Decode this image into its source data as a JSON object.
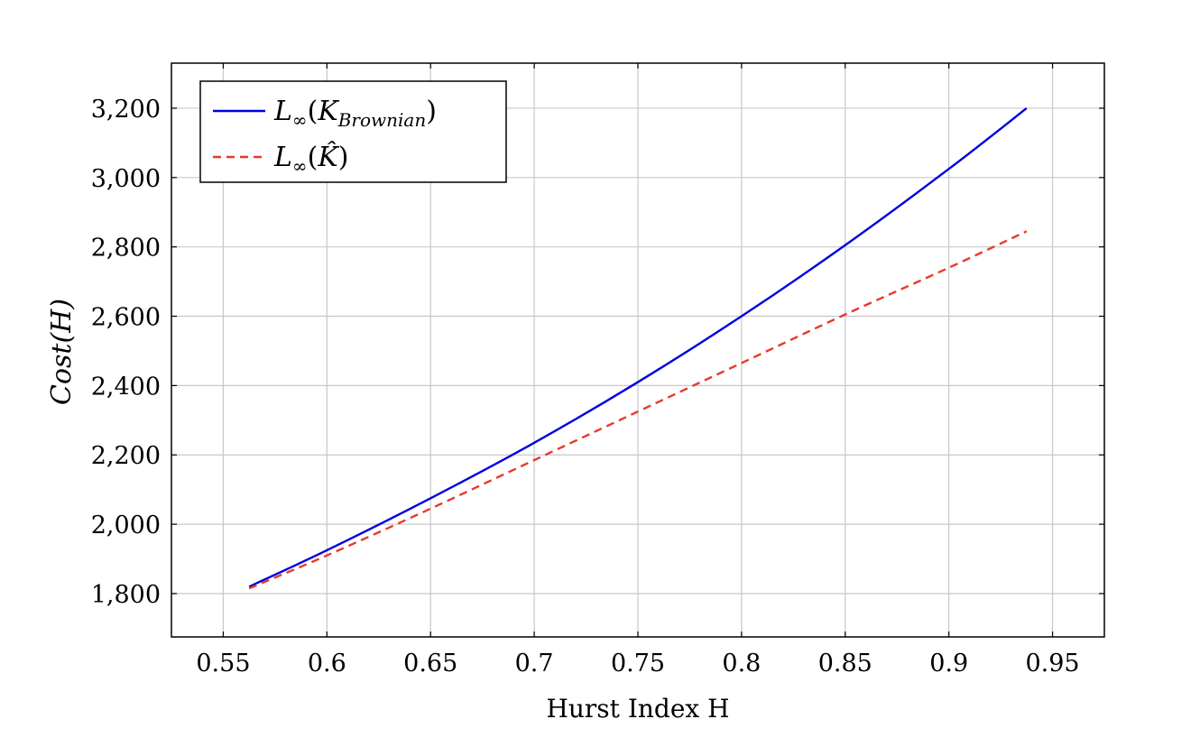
{
  "chart_data": {
    "type": "line",
    "title": "",
    "xlabel": "Hurst Index H",
    "ylabel": "Cost(H)",
    "xlim": [
      0.525,
      0.975
    ],
    "ylim": [
      1675,
      3330
    ],
    "xticks": [
      0.55,
      0.6,
      0.65,
      0.7,
      0.75,
      0.8,
      0.85,
      0.9,
      0.95
    ],
    "xtick_labels": [
      "0.55",
      "0.6",
      "0.65",
      "0.7",
      "0.75",
      "0.8",
      "0.85",
      "0.9",
      "0.95"
    ],
    "yticks": [
      1800,
      2000,
      2200,
      2400,
      2600,
      2800,
      3000,
      3200
    ],
    "ytick_labels": [
      "1,800",
      "2,000",
      "2,200",
      "2,400",
      "2,600",
      "2,800",
      "3,000",
      "3,200"
    ],
    "grid": true,
    "legend_position": "top-left",
    "series": [
      {
        "name": "L∞(K_Brownian)",
        "legend_main": "L",
        "legend_sub": "∞",
        "legend_open": "(",
        "legend_arg": "K",
        "legend_arg_sub": "Brownian",
        "legend_close": ")",
        "color": "#0000e0",
        "style": "solid",
        "x": [
          0.5625,
          0.6,
          0.65,
          0.7,
          0.75,
          0.8,
          0.85,
          0.9,
          0.9375
        ],
        "y": [
          1820,
          1925,
          2075,
          2235,
          2410,
          2600,
          2805,
          3025,
          3200
        ]
      },
      {
        "name": "L∞(K̂)",
        "legend_main": "L",
        "legend_sub": "∞",
        "legend_open": "(",
        "legend_arg": "K̂",
        "legend_arg_sub": "",
        "legend_close": ")",
        "color": "#e8392b",
        "style": "dashed",
        "x": [
          0.5625,
          0.6,
          0.65,
          0.7,
          0.75,
          0.8,
          0.85,
          0.9,
          0.9375
        ],
        "y": [
          1815,
          1910,
          2045,
          2185,
          2325,
          2465,
          2605,
          2740,
          2845
        ]
      }
    ]
  }
}
